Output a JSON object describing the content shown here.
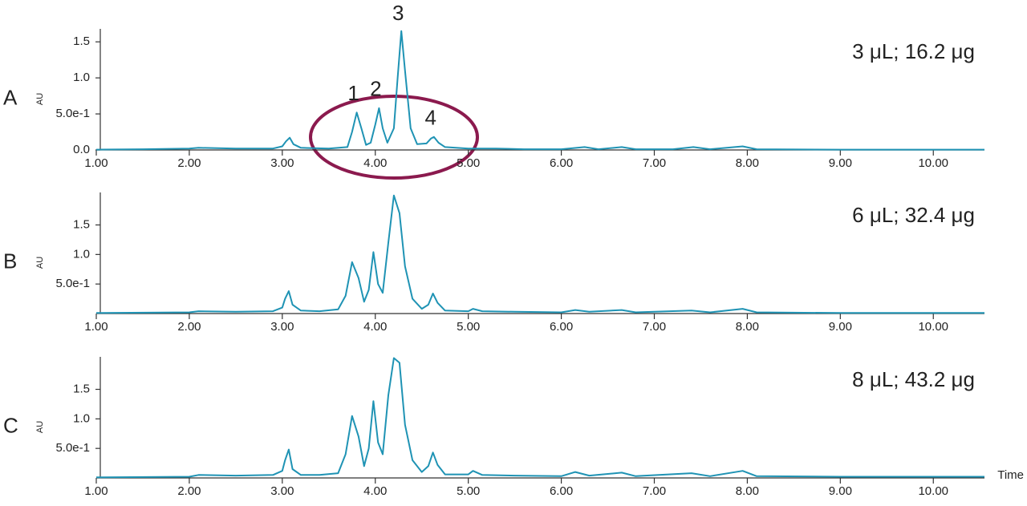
{
  "chart_data": [
    {
      "type": "line",
      "panel_label": "A",
      "annotation": "3 μL; 16.2 μg",
      "ylabel": "AU",
      "color": "#1f93b4",
      "xlim": [
        1,
        10.55
      ],
      "ylim": [
        0,
        1.68
      ],
      "xticks": [
        {
          "value": 1,
          "label": "1.00"
        },
        {
          "value": 2,
          "label": "2.00"
        },
        {
          "value": 3,
          "label": "3.00"
        },
        {
          "value": 4,
          "label": "4.00"
        },
        {
          "value": 5,
          "label": "5.00"
        },
        {
          "value": 6,
          "label": "6.00"
        },
        {
          "value": 7,
          "label": "7.00"
        },
        {
          "value": 8,
          "label": "8.00"
        },
        {
          "value": 9,
          "label": "9.00"
        },
        {
          "value": 10,
          "label": "10.00"
        }
      ],
      "yticks": [
        {
          "value": 0,
          "label": "0.0"
        },
        {
          "value": 0.5,
          "label": "5.0e-1"
        },
        {
          "value": 1,
          "label": "1.0"
        },
        1.5
      ],
      "peak_labels": [
        {
          "label": "1",
          "x": 3.8
        },
        {
          "label": "2",
          "x": 4.04
        },
        {
          "label": "3",
          "x": 4.28
        },
        {
          "label": "4",
          "x": 4.63
        }
      ],
      "x": [
        1.0,
        1.5,
        2.0,
        2.1,
        2.5,
        2.9,
        3.0,
        3.04,
        3.08,
        3.12,
        3.2,
        3.5,
        3.7,
        3.75,
        3.8,
        3.85,
        3.9,
        3.95,
        4.0,
        4.04,
        4.08,
        4.13,
        4.2,
        4.24,
        4.28,
        4.32,
        4.38,
        4.45,
        4.55,
        4.6,
        4.63,
        4.68,
        4.75,
        5.0,
        5.3,
        5.6,
        6.0,
        6.25,
        6.4,
        6.65,
        6.8,
        7.2,
        7.42,
        7.6,
        7.95,
        8.1,
        9.0,
        10.55
      ],
      "values": [
        0.005,
        0.01,
        0.02,
        0.03,
        0.02,
        0.02,
        0.05,
        0.12,
        0.17,
        0.08,
        0.03,
        0.02,
        0.04,
        0.25,
        0.52,
        0.3,
        0.07,
        0.1,
        0.35,
        0.58,
        0.3,
        0.1,
        0.3,
        1.0,
        1.65,
        1.1,
        0.3,
        0.08,
        0.09,
        0.16,
        0.18,
        0.1,
        0.04,
        0.02,
        0.02,
        0.01,
        0.01,
        0.04,
        0.01,
        0.04,
        0.01,
        0.01,
        0.04,
        0.01,
        0.05,
        0.01,
        0.005,
        0.005
      ]
    },
    {
      "type": "line",
      "panel_label": "B",
      "annotation": "6 μL; 32.4 μg",
      "ylabel": "AU",
      "color": "#1f93b4",
      "xlim": [
        1,
        10.55
      ],
      "ylim": [
        0,
        2.05
      ],
      "xticks": [
        {
          "value": 1,
          "label": "1.00"
        },
        {
          "value": 2,
          "label": "2.00"
        },
        {
          "value": 3,
          "label": "3.00"
        },
        {
          "value": 4,
          "label": "4.00"
        },
        {
          "value": 5,
          "label": "5.00"
        },
        {
          "value": 6,
          "label": "6.00"
        },
        {
          "value": 7,
          "label": "7.00"
        },
        {
          "value": 8,
          "label": "8.00"
        },
        {
          "value": 9,
          "label": "9.00"
        },
        {
          "value": 10,
          "label": "10.00"
        }
      ],
      "yticks": [
        {
          "value": 0.5,
          "label": "5.0e-1"
        },
        {
          "value": 1,
          "label": "1.0"
        },
        1.5
      ],
      "x": [
        1.0,
        2.0,
        2.1,
        2.5,
        2.9,
        3.0,
        3.03,
        3.07,
        3.11,
        3.2,
        3.4,
        3.6,
        3.68,
        3.75,
        3.82,
        3.88,
        3.93,
        3.98,
        4.03,
        4.08,
        4.14,
        4.2,
        4.26,
        4.32,
        4.4,
        4.5,
        4.57,
        4.62,
        4.67,
        4.75,
        5.0,
        5.05,
        5.15,
        5.5,
        6.0,
        6.15,
        6.3,
        6.65,
        6.8,
        7.4,
        7.6,
        7.95,
        8.1,
        9.0,
        10.55
      ],
      "values": [
        0.01,
        0.02,
        0.04,
        0.03,
        0.04,
        0.1,
        0.25,
        0.38,
        0.15,
        0.05,
        0.04,
        0.07,
        0.3,
        0.87,
        0.6,
        0.2,
        0.4,
        1.04,
        0.5,
        0.35,
        1.2,
        2.0,
        1.7,
        0.8,
        0.25,
        0.08,
        0.15,
        0.34,
        0.18,
        0.05,
        0.04,
        0.08,
        0.04,
        0.03,
        0.02,
        0.06,
        0.03,
        0.06,
        0.02,
        0.05,
        0.02,
        0.08,
        0.02,
        0.01,
        0.01
      ]
    },
    {
      "type": "line",
      "panel_label": "C",
      "annotation": "8 μL; 43.2 μg",
      "ylabel": "AU",
      "xlabel": "Time",
      "color": "#1f93b4",
      "xlim": [
        1,
        10.55
      ],
      "ylim": [
        0,
        2.05
      ],
      "xticks": [
        {
          "value": 1,
          "label": "1.00"
        },
        {
          "value": 2,
          "label": "2.00"
        },
        {
          "value": 3,
          "label": "3.00"
        },
        {
          "value": 4,
          "label": "4.00"
        },
        {
          "value": 5,
          "label": "5.00"
        },
        {
          "value": 6,
          "label": "6.00"
        },
        {
          "value": 7,
          "label": "7.00"
        },
        {
          "value": 8,
          "label": "8.00"
        },
        {
          "value": 9,
          "label": "9.00"
        },
        {
          "value": 10,
          "label": "10.00"
        }
      ],
      "yticks": [
        {
          "value": 0.5,
          "label": "5.0e-1"
        },
        {
          "value": 1,
          "label": "1.0"
        },
        1.5
      ],
      "x": [
        1.0,
        2.0,
        2.1,
        2.5,
        2.9,
        3.0,
        3.03,
        3.07,
        3.11,
        3.2,
        3.4,
        3.6,
        3.68,
        3.75,
        3.82,
        3.88,
        3.93,
        3.98,
        4.03,
        4.08,
        4.14,
        4.2,
        4.26,
        4.32,
        4.4,
        4.5,
        4.57,
        4.62,
        4.67,
        4.75,
        5.0,
        5.05,
        5.15,
        5.5,
        6.0,
        6.15,
        6.3,
        6.65,
        6.8,
        7.4,
        7.6,
        7.95,
        8.1,
        9.0,
        10.55
      ],
      "values": [
        0.01,
        0.02,
        0.05,
        0.04,
        0.05,
        0.12,
        0.3,
        0.48,
        0.15,
        0.05,
        0.05,
        0.08,
        0.4,
        1.05,
        0.7,
        0.2,
        0.5,
        1.3,
        0.6,
        0.4,
        1.4,
        2.03,
        1.95,
        0.9,
        0.3,
        0.1,
        0.2,
        0.43,
        0.22,
        0.06,
        0.06,
        0.12,
        0.05,
        0.04,
        0.03,
        0.1,
        0.04,
        0.09,
        0.03,
        0.08,
        0.03,
        0.12,
        0.03,
        0.02,
        0.02
      ]
    }
  ]
}
